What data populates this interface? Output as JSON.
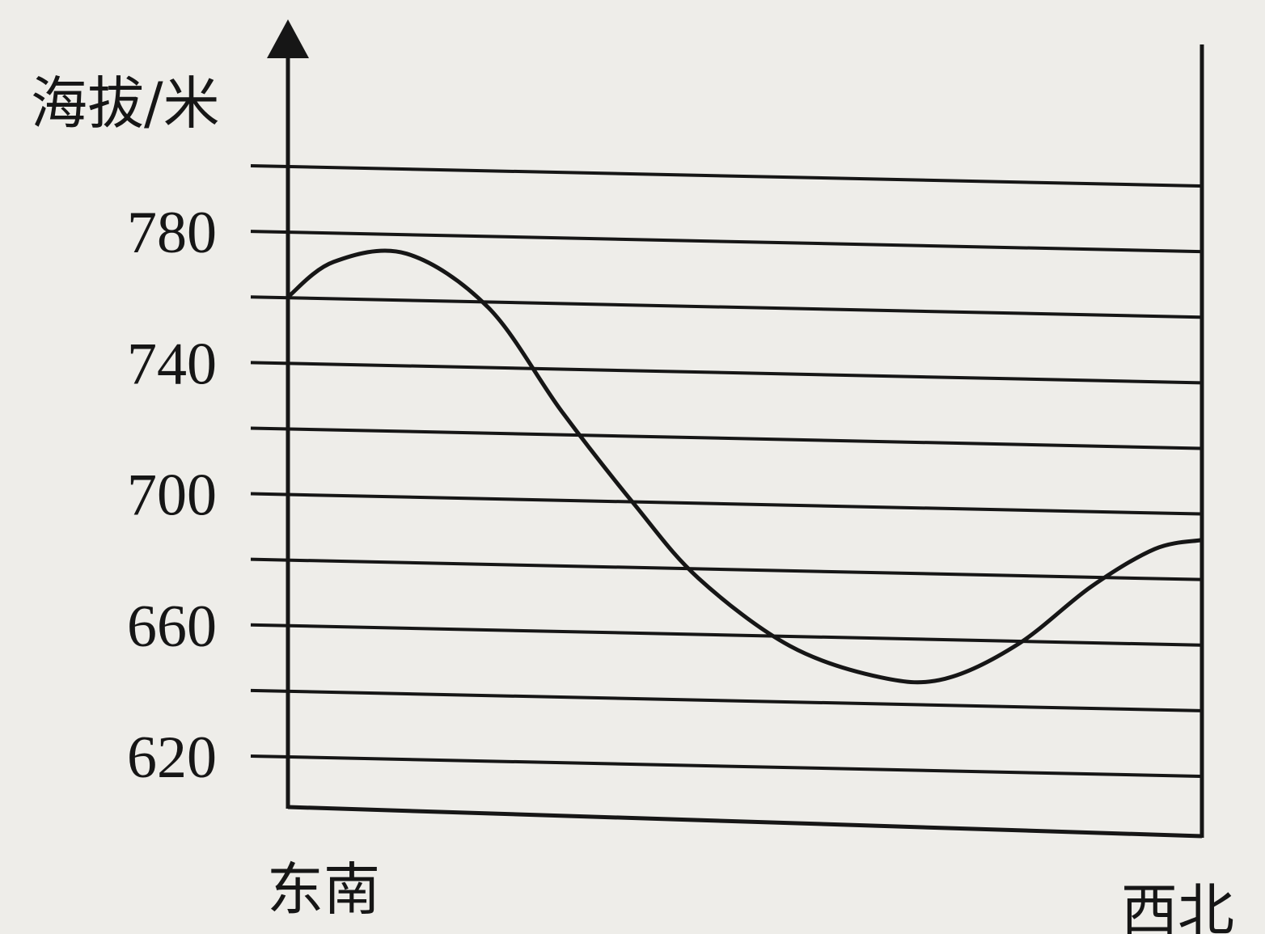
{
  "chart_data": {
    "type": "line",
    "title": "",
    "ylabel": "海拔/米",
    "xlabel": "",
    "x_start_label": "东南",
    "x_end_label": "西北",
    "ylim": [
      610,
      800
    ],
    "yticks": [
      620,
      660,
      700,
      740,
      780
    ],
    "grid_values": [
      620,
      640,
      660,
      680,
      700,
      720,
      740,
      760,
      780,
      800
    ],
    "grid": true,
    "series": [
      {
        "x": [
          0,
          0.05,
          0.13,
          0.22,
          0.3,
          0.38,
          0.45,
          0.55,
          0.65,
          0.72,
          0.8,
          0.88,
          0.95,
          1.0
        ],
        "values": [
          760,
          771,
          774,
          758,
          727,
          699,
          677,
          657,
          648,
          648,
          659,
          677,
          689,
          692
        ]
      }
    ]
  }
}
